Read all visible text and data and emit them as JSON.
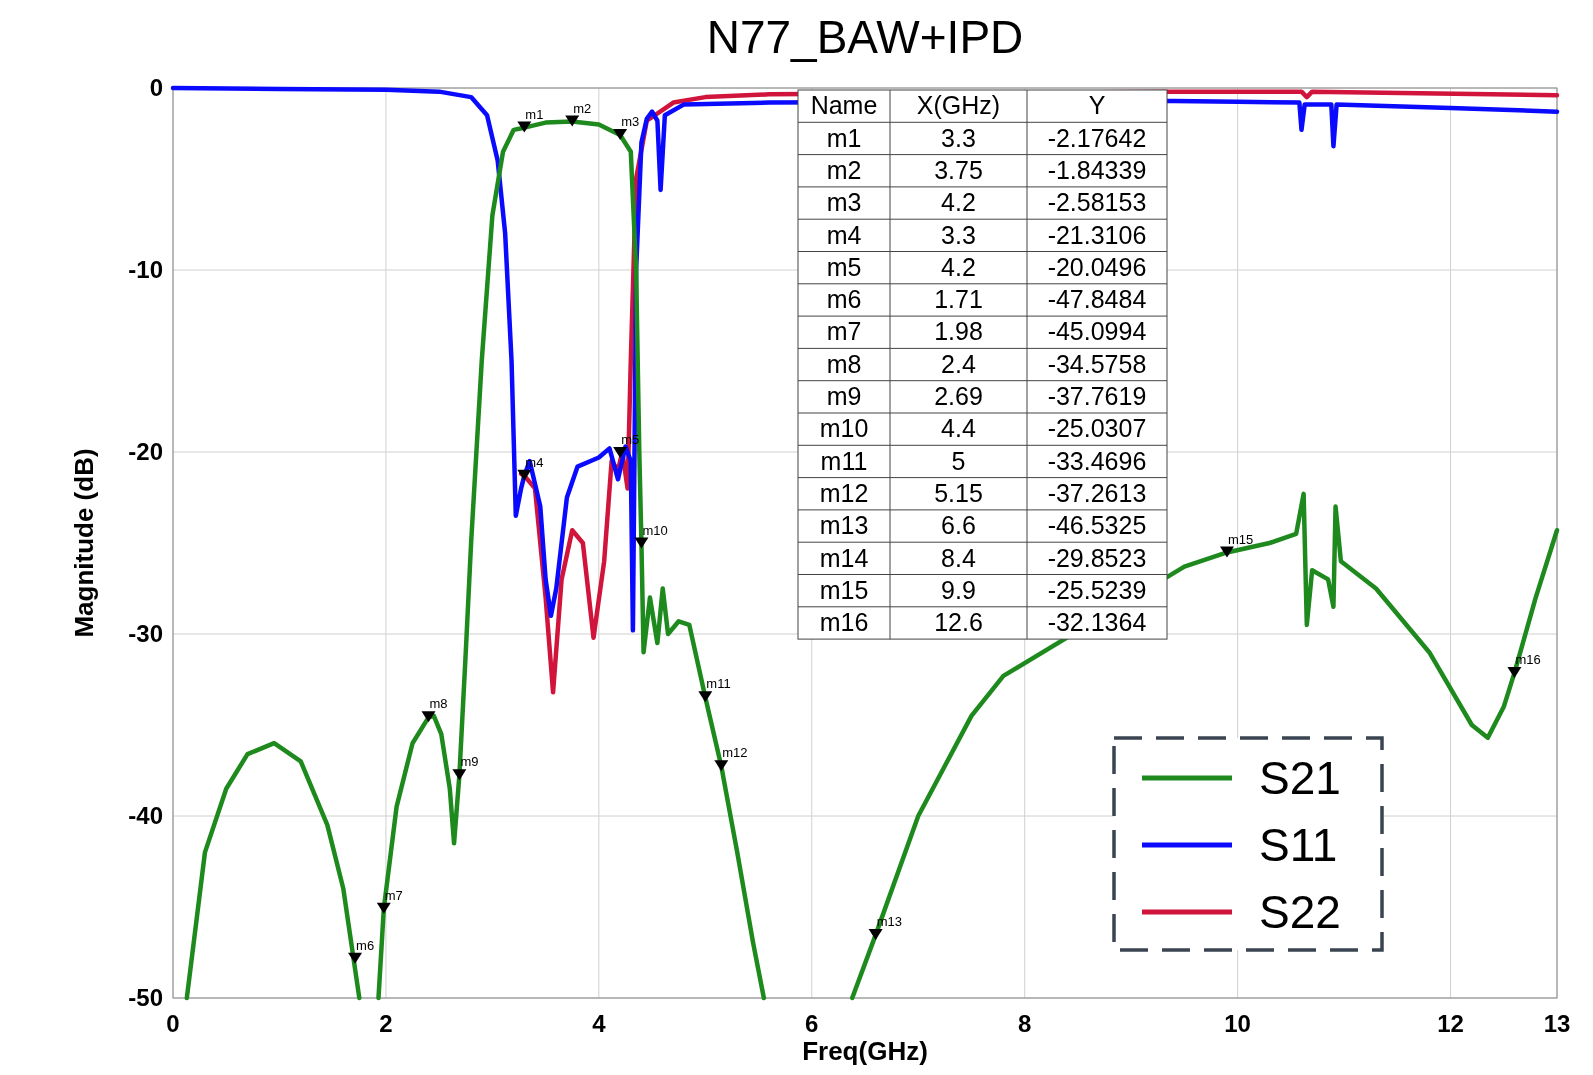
{
  "chart_data": [
    {
      "type": "line",
      "title": "N77_BAW+IPD",
      "xlabel": "Freq(GHz)",
      "ylabel": "Magnitude (dB)",
      "xlim": [
        0,
        13
      ],
      "ylim": [
        -50,
        0
      ],
      "xticks": [
        0,
        2,
        4,
        6,
        8,
        10,
        12,
        13
      ],
      "yticks": [
        -50,
        -40,
        -30,
        -20,
        -10,
        0
      ],
      "grid": true,
      "legend": "bottom right",
      "line_style": "solid",
      "marker": "none",
      "series": [
        {
          "name": "S21",
          "color": "#1e8a1e",
          "x": [
            0.13,
            0.3,
            0.5,
            0.7,
            0.95,
            1.2,
            1.45,
            1.6,
            1.75,
            1.84,
            1.93,
            1.98,
            2.1,
            2.25,
            2.4,
            2.45,
            2.52,
            2.6,
            2.64,
            2.69,
            2.75,
            2.8,
            2.9,
            3.0,
            3.1,
            3.2,
            3.3,
            3.5,
            3.75,
            4.0,
            4.2,
            4.3,
            4.35,
            4.38,
            4.4,
            4.42,
            4.48,
            4.55,
            4.6,
            4.65,
            4.75,
            4.85,
            5.0,
            5.15,
            5.3,
            5.45,
            5.55,
            5.9,
            6.38,
            6.6,
            7.0,
            7.5,
            7.8,
            9.5,
            9.9,
            10.3,
            10.55,
            10.62,
            10.65,
            10.7,
            10.85,
            10.9,
            10.92,
            10.97,
            11.3,
            11.8,
            12.2,
            12.35,
            12.5,
            12.6,
            12.8,
            13.0
          ],
          "values": [
            -50,
            -42,
            -38.5,
            -36.6,
            -36,
            -37,
            -40.5,
            -44,
            -50,
            null,
            -50,
            -45.1,
            -39.5,
            -36,
            -34.58,
            -34.5,
            -35.5,
            -38.5,
            -41.5,
            -37.76,
            -31,
            -25,
            -15,
            -7,
            -3.5,
            -2.3,
            -2.18,
            -1.9,
            -1.84,
            -2.0,
            -2.58,
            -3.5,
            -10,
            -20,
            -25.03,
            -31,
            -28,
            -30.5,
            -27.5,
            -30,
            -29.3,
            -29.5,
            -33.47,
            -37.26,
            -42,
            -47,
            -50,
            null,
            -50,
            -46.53,
            -40,
            -34.5,
            -32.3,
            -26.3,
            -25.52,
            -25,
            -24.5,
            -22.3,
            -29.5,
            -26.5,
            -27,
            -28.5,
            -23,
            -26,
            -27.5,
            -31,
            -35,
            -35.7,
            -34,
            -32.14,
            -28,
            -24.3
          ]
        },
        {
          "name": "S11",
          "color": "#0a0aff",
          "x": [
            0,
            1.0,
            2.0,
            2.5,
            2.8,
            2.95,
            3.05,
            3.12,
            3.18,
            3.22,
            3.27,
            3.3,
            3.35,
            3.45,
            3.5,
            3.55,
            3.6,
            3.7,
            3.8,
            4.0,
            4.1,
            4.18,
            4.25,
            4.3,
            4.32,
            4.35,
            4.4,
            4.45,
            4.5,
            4.55,
            4.58,
            4.62,
            4.8,
            5.6,
            9.4,
            10,
            10.58,
            10.6,
            10.63,
            10.88,
            10.9,
            10.93,
            12,
            13
          ],
          "values": [
            0,
            -0.05,
            -0.1,
            -0.2,
            -0.5,
            -1.5,
            -4,
            -8,
            -15,
            -23.5,
            -22,
            -21.3,
            -20.5,
            -23,
            -27,
            -29,
            -27.5,
            -22.5,
            -20.8,
            -20.3,
            -19.8,
            -21.5,
            -19.7,
            -20.5,
            -29.8,
            -10,
            -3,
            -1.7,
            -1.3,
            -1.8,
            -5.6,
            -1.5,
            -0.9,
            -0.8,
            -0.72,
            -0.75,
            -0.8,
            -2.3,
            -0.9,
            -0.9,
            -3.2,
            -0.9,
            -1.1,
            -1.3
          ]
        },
        {
          "name": "S22",
          "color": "#d0143c",
          "x": [
            3.27,
            3.3,
            3.4,
            3.5,
            3.57,
            3.65,
            3.75,
            3.85,
            3.95,
            4.05,
            4.12,
            4.18,
            4.22,
            4.27,
            4.3,
            4.35,
            4.45,
            4.7,
            5.0,
            5.6,
            9.4,
            10,
            10.6,
            10.65,
            10.7,
            13
          ],
          "values": [
            -21.2,
            -21.3,
            -22,
            -28,
            -33.2,
            -27,
            -24.3,
            -25,
            -30.2,
            -26,
            -20.5,
            -21,
            -20,
            -22,
            -15,
            -5,
            -1.8,
            -0.8,
            -0.5,
            -0.35,
            -0.2,
            -0.2,
            -0.2,
            -0.5,
            -0.2,
            -0.4
          ]
        }
      ],
      "annotations": [
        {
          "text": "m1",
          "x": 3.3,
          "y": -2.17642
        },
        {
          "text": "m2",
          "x": 3.75,
          "y": -1.84339
        },
        {
          "text": "m3",
          "x": 4.2,
          "y": -2.58153
        },
        {
          "text": "m4",
          "x": 3.3,
          "y": -21.3106
        },
        {
          "text": "m5",
          "x": 4.2,
          "y": -20.0496
        },
        {
          "text": "m6",
          "x": 1.71,
          "y": -47.8484
        },
        {
          "text": "m7",
          "x": 1.98,
          "y": -45.0994
        },
        {
          "text": "m8",
          "x": 2.4,
          "y": -34.5758
        },
        {
          "text": "m9",
          "x": 2.69,
          "y": -37.7619
        },
        {
          "text": "m10",
          "x": 4.4,
          "y": -25.0307
        },
        {
          "text": "m11",
          "x": 5,
          "y": -33.4696
        },
        {
          "text": "m12",
          "x": 5.15,
          "y": -37.2613
        },
        {
          "text": "m13",
          "x": 6.6,
          "y": -46.5325
        },
        {
          "text": "m15",
          "x": 9.9,
          "y": -25.5239
        },
        {
          "text": "m16",
          "x": 12.6,
          "y": -32.1364
        }
      ]
    },
    {
      "type": "other",
      "annotations": [
        "Name",
        "X(GHz)",
        "Y",
        "m1",
        "3.3",
        "-2.17642",
        "m2",
        "3.75",
        "-1.84339",
        "m3",
        "4.2",
        "-2.58153",
        "m4",
        "3.3",
        "-21.3106",
        "m5",
        "4.2",
        "-20.0496",
        "m6",
        "1.71",
        "-47.8484",
        "m7",
        "1.98",
        "-45.0994",
        "m8",
        "2.4",
        "-34.5758",
        "m9",
        "2.69",
        "-37.7619",
        "m10",
        "4.4",
        "-25.0307",
        "m11",
        "5",
        "-33.4696",
        "m12",
        "5.15",
        "-37.2613",
        "m13",
        "6.6",
        "-46.5325",
        "m14",
        "8.4",
        "-29.8523",
        "m15",
        "9.9",
        "-25.5239",
        "m16",
        "12.6",
        "-32.1364"
      ]
    }
  ]
}
